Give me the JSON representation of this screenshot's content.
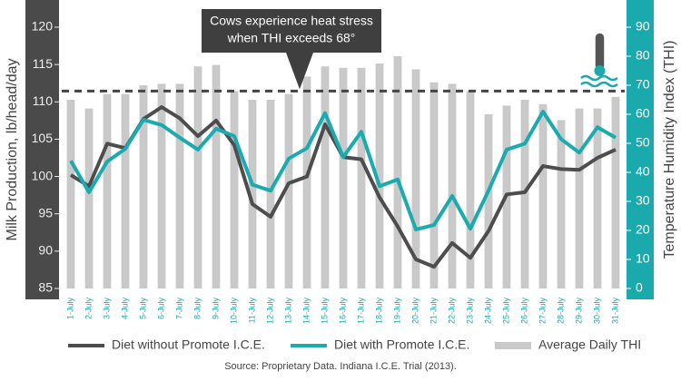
{
  "chart_data": {
    "type": "combo",
    "categories": [
      "1-July",
      "2-July",
      "3-July",
      "4-July",
      "5-July",
      "6-July",
      "7-July",
      "8-July",
      "9-July",
      "10-July",
      "11-July",
      "12-July",
      "13-July",
      "14-July",
      "15-July",
      "16-July",
      "17-July",
      "18-July",
      "19-July",
      "20-July",
      "21-July",
      "22-July",
      "23-July",
      "24-July",
      "25-July",
      "26-July",
      "27-July",
      "28-July",
      "29-July",
      "30-July",
      "31-July"
    ],
    "y_label": "Milk Production, lb/head/day",
    "y2_label": "Temperature Humidity Index (THI)",
    "ylim": [
      85,
      120
    ],
    "yticks": [
      85,
      90,
      95,
      100,
      105,
      110,
      115,
      120
    ],
    "y2lim": [
      0,
      90
    ],
    "y2ticks": [
      0,
      10,
      20,
      30,
      40,
      50,
      60,
      70,
      80,
      90
    ],
    "series": [
      {
        "name": "Average Daily THI",
        "type": "bar",
        "axis": "y2",
        "color": "#c9c9c9",
        "values": [
          65,
          62,
          67,
          67,
          70,
          70.5,
          70.5,
          76.5,
          77,
          68,
          65,
          65,
          67,
          73,
          76.5,
          76,
          76,
          77.5,
          80,
          75.5,
          71,
          70.5,
          68,
          60,
          63,
          65,
          63.5,
          58,
          62,
          62,
          66
        ]
      },
      {
        "name": "Diet without Promote I.C.E.",
        "type": "line",
        "axis": "y",
        "color": "#4d4d4d",
        "values": [
          100.2,
          98.7,
          104.4,
          103.8,
          107.7,
          109.3,
          107.8,
          105.4,
          107.5,
          104.2,
          96.3,
          94.6,
          99.1,
          100,
          107,
          102.6,
          102.3,
          97.2,
          93.3,
          88.9,
          87.9,
          91.1,
          89.1,
          92.7,
          97.6,
          97.9,
          101.4,
          101,
          100.9,
          102.5,
          103.6
        ]
      },
      {
        "name": "Diet with Promote I.C.E.",
        "type": "line",
        "axis": "y",
        "color": "#1aabb0",
        "values": [
          102.1,
          97.9,
          102,
          103.7,
          107.6,
          106.9,
          105.2,
          103.6,
          106.4,
          105.4,
          98.9,
          98.1,
          102.4,
          103.8,
          108.5,
          102.6,
          106,
          98.7,
          99.6,
          92.9,
          93.5,
          97.4,
          93,
          98.1,
          103.6,
          104.4,
          108.7,
          105,
          103.2,
          106.6,
          105.2
        ]
      }
    ],
    "reference_line": {
      "value": 68,
      "axis": "y2"
    },
    "annotation": [
      "Cows experience heat stress",
      "when THI exceeds 68°"
    ],
    "source": "Source: Proprietary Data. Indiana I.C.E. Trial (2013)."
  }
}
